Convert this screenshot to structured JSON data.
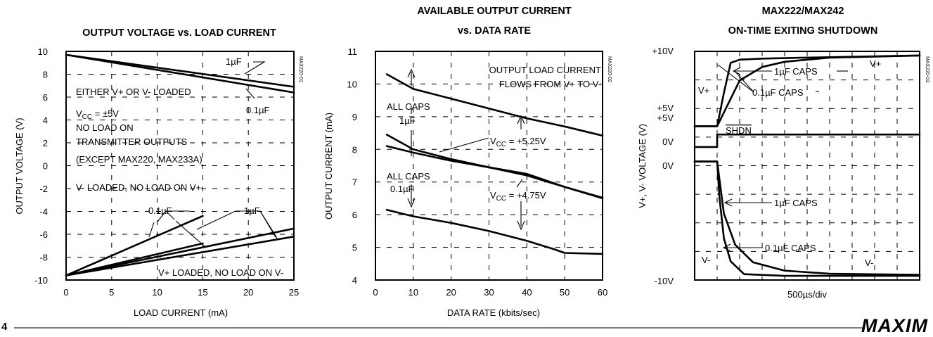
{
  "page": {
    "page_number": "4",
    "logo_text": "MAXIM"
  },
  "chart_data": [
    {
      "type": "line",
      "title": "OUTPUT VOLTAGE vs. LOAD CURRENT",
      "xlabel": "LOAD CURRENT (mA)",
      "ylabel": "OUTPUT VOLTAGE (V)",
      "xlim": [
        0,
        25
      ],
      "ylim": [
        -10,
        10
      ],
      "xticks": [
        "0",
        "5",
        "10",
        "15",
        "20",
        "25"
      ],
      "yticks": [
        "10",
        "8",
        "6",
        "4",
        "2",
        "0",
        "-2",
        "-4",
        "-6",
        "-8",
        "-10"
      ],
      "grid": true,
      "side_code": "MAX220-01",
      "series": [
        {
          "name": "1µF",
          "x": [
            0,
            25
          ],
          "y": [
            9.7,
            6.9
          ]
        },
        {
          "name": "0.1µF",
          "x": [
            0,
            25
          ],
          "y": [
            9.7,
            6.4
          ]
        },
        {
          "name": "0.1µF",
          "x": [
            0,
            15
          ],
          "y": [
            -9.6,
            -4.4
          ]
        },
        {
          "name": "0.1µF",
          "x": [
            0,
            25
          ],
          "y": [
            -9.6,
            -6.2
          ]
        },
        {
          "name": "1µF",
          "x": [
            0,
            15
          ],
          "y": [
            -9.6,
            -6.8
          ]
        },
        {
          "name": "1µF",
          "x": [
            0,
            25
          ],
          "y": [
            -9.6,
            -5.5
          ]
        }
      ],
      "annotations": {
        "cap_1uF": "1µF",
        "cap_01uF": "0.1µF",
        "either_loaded": "EITHER V+ OR V- LOADED",
        "vcc_main": "V",
        "vcc_sub": "CC",
        "vcc_val": " = ±5V",
        "no_load": "NO LOAD ON",
        "transmitter": "TRANSMITTER OUTPUTS",
        "except": "(EXCEPT MAX220, MAX233A)",
        "vminus_loaded": "V- LOADED, NO LOAD ON V+",
        "vplus_loaded": "V+ LOADED, NO LOAD ON V-"
      }
    },
    {
      "type": "line",
      "title": "AVAILABLE OUTPUT CURRENT",
      "title2": "vs. DATA RATE",
      "xlabel": "DATA RATE (kbits/sec)",
      "ylabel": "OUTPUT CURRENT (mA)",
      "xlim": [
        0,
        60
      ],
      "ylim": [
        4,
        11
      ],
      "xticks": [
        "0",
        "10",
        "20",
        "30",
        "40",
        "50",
        "60"
      ],
      "yticks": [
        "11",
        "10",
        "9",
        "8",
        "7",
        "6",
        "5",
        "4"
      ],
      "grid": true,
      "side_code": "MAX220-02",
      "series": [
        {
          "name": "ALL CAPS 1µF, VCC = +5.25V",
          "x": [
            3,
            10,
            20,
            30,
            40,
            50,
            60
          ],
          "y": [
            10.3,
            9.85,
            9.55,
            9.25,
            8.95,
            8.7,
            8.42
          ]
        },
        {
          "name": "ALL CAPS 1µF, VCC = +4.75V",
          "x": [
            3,
            10,
            20,
            30,
            40,
            50,
            60
          ],
          "y": [
            8.45,
            8.0,
            7.7,
            7.45,
            7.2,
            6.85,
            6.5
          ]
        },
        {
          "name": "ALL CAPS 0.1µF, VCC = +5.25V",
          "x": [
            3,
            10,
            20,
            30,
            40,
            50,
            60
          ],
          "y": [
            8.1,
            7.9,
            7.65,
            7.45,
            7.25,
            6.85,
            6.52
          ]
        },
        {
          "name": "ALL CAPS 0.1µF, VCC = +4.75V",
          "x": [
            3,
            10,
            20,
            30,
            40,
            47,
            50,
            60
          ],
          "y": [
            6.15,
            5.95,
            5.75,
            5.5,
            5.2,
            4.95,
            4.83,
            4.8
          ]
        }
      ],
      "annotations": {
        "flow1": "OUTPUT LOAD CURRENT",
        "flow2": "FLOWS FROM V+ TO V-",
        "allcaps": "ALL CAPS",
        "cap_1uF": "1µF",
        "cap_01uF": "0.1µF",
        "vcc_main": "V",
        "vcc_sub": "CC",
        "vcc_525": " = +5.25V",
        "vcc_475": " = +4.75V"
      }
    },
    {
      "type": "line",
      "title": "MAX222/MAX242",
      "title2": "ON-TIME EXITING SHUTDOWN",
      "xlabel": "500µs/div",
      "ylabel": "V+, V- VOLTAGE (V)",
      "xlim": [
        0,
        10
      ],
      "ylim": [
        0,
        11
      ],
      "yticks": [
        "+10V",
        "+5V",
        "+5V",
        "0V",
        "0V",
        "-10V"
      ],
      "grid": true,
      "side_code": "MAX220-03",
      "series": [
        {
          "name": "V+ 0.1µF CAPS",
          "x": [
            0,
            1,
            1.3,
            1.6,
            2,
            3,
            5,
            10
          ],
          "y": [
            7.4,
            7.4,
            9.0,
            10.45,
            10.6,
            10.65,
            10.7,
            10.8
          ]
        },
        {
          "name": "V+ 1µF CAPS",
          "x": [
            0,
            1,
            2,
            3,
            4,
            6,
            8,
            10
          ],
          "y": [
            7.4,
            7.4,
            9.6,
            10.25,
            10.5,
            10.7,
            10.75,
            10.8
          ]
        },
        {
          "name": "SHDN",
          "x": [
            0,
            1,
            1,
            10
          ],
          "y": [
            6.4,
            6.4,
            7.0,
            7.0
          ]
        },
        {
          "name": "V- 0.1µF CAPS",
          "x": [
            0,
            1,
            1.1,
            1.3,
            1.6,
            2.2,
            4,
            10
          ],
          "y": [
            5.7,
            5.7,
            4.0,
            2.0,
            0.9,
            0.28,
            0.2,
            0.2
          ]
        },
        {
          "name": "V- 1µF CAPS",
          "x": [
            0,
            1,
            1.3,
            1.8,
            2.6,
            4,
            6,
            10
          ],
          "y": [
            5.7,
            5.7,
            3.2,
            1.7,
            0.85,
            0.45,
            0.3,
            0.25
          ]
        }
      ],
      "annotations": {
        "vplus": "V+",
        "vminus": "V-",
        "caps_1uF": "1µF CAPS",
        "caps_01uF": "0.1µF CAPS",
        "shdn": "SHDN"
      }
    }
  ]
}
